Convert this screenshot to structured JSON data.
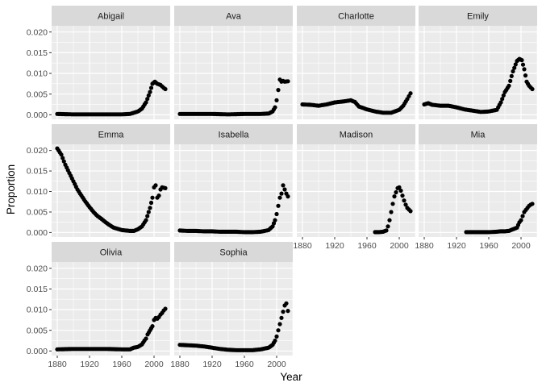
{
  "chart_data": {
    "type": "scatter",
    "facet": "wrap",
    "xlabel": "Year",
    "ylabel": "Proportion",
    "xlim": [
      1873,
      2020
    ],
    "ylim": [
      -0.0011,
      0.0215
    ],
    "xticks": [
      1880,
      1920,
      1960,
      2000
    ],
    "xtick_labels": [
      "1880",
      "1920",
      "1960",
      "2000"
    ],
    "yticks": [
      0,
      0.005,
      0.01,
      0.015,
      0.02
    ],
    "ytick_labels": [
      "0.000",
      "0.005",
      "0.010",
      "0.015",
      "0.020"
    ],
    "grid": true,
    "colors": {
      "panel": "#ebebeb",
      "strip": "#d9d9d9",
      "grid": "#ffffff",
      "point": "#000000"
    },
    "series": [
      {
        "name": "Abigail",
        "points": [
          [
            1880,
            0.0002
          ],
          [
            1900,
            0.0001
          ],
          [
            1920,
            0.0001
          ],
          [
            1940,
            0.0001
          ],
          [
            1960,
            0.0001
          ],
          [
            1970,
            0.0002
          ],
          [
            1980,
            0.0008
          ],
          [
            1985,
            0.0015
          ],
          [
            1990,
            0.003
          ],
          [
            1995,
            0.0055
          ],
          [
            1998,
            0.0075
          ],
          [
            2001,
            0.008
          ],
          [
            2004,
            0.0075
          ],
          [
            2008,
            0.0072
          ],
          [
            2012,
            0.0065
          ],
          [
            2014,
            0.0062
          ]
        ]
      },
      {
        "name": "Ava",
        "points": [
          [
            1880,
            0.0002
          ],
          [
            1900,
            0.0002
          ],
          [
            1920,
            0.0002
          ],
          [
            1940,
            0.0001
          ],
          [
            1960,
            0.0002
          ],
          [
            1980,
            0.0002
          ],
          [
            1990,
            0.0003
          ],
          [
            1995,
            0.0008
          ],
          [
            1998,
            0.0018
          ],
          [
            2000,
            0.0035
          ],
          [
            2002,
            0.006
          ],
          [
            2004,
            0.0085
          ],
          [
            2006,
            0.008
          ],
          [
            2008,
            0.0082
          ],
          [
            2010,
            0.008
          ],
          [
            2014,
            0.0081
          ]
        ]
      },
      {
        "name": "Charlotte",
        "points": [
          [
            1880,
            0.0025
          ],
          [
            1890,
            0.0024
          ],
          [
            1900,
            0.0022
          ],
          [
            1910,
            0.0025
          ],
          [
            1920,
            0.003
          ],
          [
            1930,
            0.0032
          ],
          [
            1940,
            0.0035
          ],
          [
            1945,
            0.0031
          ],
          [
            1950,
            0.002
          ],
          [
            1960,
            0.0013
          ],
          [
            1970,
            0.0008
          ],
          [
            1980,
            0.0005
          ],
          [
            1990,
            0.0005
          ],
          [
            2000,
            0.0012
          ],
          [
            2005,
            0.0022
          ],
          [
            2010,
            0.0038
          ],
          [
            2014,
            0.0052
          ]
        ]
      },
      {
        "name": "Emily",
        "points": [
          [
            1880,
            0.0025
          ],
          [
            1885,
            0.0028
          ],
          [
            1890,
            0.0024
          ],
          [
            1900,
            0.0022
          ],
          [
            1910,
            0.0022
          ],
          [
            1920,
            0.0018
          ],
          [
            1930,
            0.0013
          ],
          [
            1940,
            0.001
          ],
          [
            1950,
            0.0007
          ],
          [
            1960,
            0.0008
          ],
          [
            1970,
            0.0012
          ],
          [
            1975,
            0.003
          ],
          [
            1980,
            0.0055
          ],
          [
            1985,
            0.007
          ],
          [
            1990,
            0.0105
          ],
          [
            1995,
            0.013
          ],
          [
            1998,
            0.0135
          ],
          [
            2001,
            0.0132
          ],
          [
            2004,
            0.011
          ],
          [
            2007,
            0.008
          ],
          [
            2010,
            0.007
          ],
          [
            2014,
            0.0062
          ]
        ]
      },
      {
        "name": "Emma",
        "points": [
          [
            1880,
            0.0205
          ],
          [
            1885,
            0.019
          ],
          [
            1890,
            0.0165
          ],
          [
            1895,
            0.0145
          ],
          [
            1900,
            0.0125
          ],
          [
            1905,
            0.0105
          ],
          [
            1910,
            0.009
          ],
          [
            1915,
            0.0075
          ],
          [
            1920,
            0.0062
          ],
          [
            1925,
            0.005
          ],
          [
            1930,
            0.004
          ],
          [
            1935,
            0.0033
          ],
          [
            1940,
            0.0025
          ],
          [
            1945,
            0.0018
          ],
          [
            1950,
            0.0012
          ],
          [
            1955,
            0.0009
          ],
          [
            1960,
            0.0006
          ],
          [
            1965,
            0.0005
          ],
          [
            1970,
            0.0004
          ],
          [
            1975,
            0.0004
          ],
          [
            1980,
            0.0008
          ],
          [
            1985,
            0.0015
          ],
          [
            1990,
            0.003
          ],
          [
            1995,
            0.006
          ],
          [
            1998,
            0.0085
          ],
          [
            2000,
            0.011
          ],
          [
            2002,
            0.0115
          ],
          [
            2004,
            0.0085
          ],
          [
            2006,
            0.009
          ],
          [
            2008,
            0.0105
          ],
          [
            2010,
            0.011
          ],
          [
            2014,
            0.0108
          ]
        ]
      },
      {
        "name": "Isabella",
        "points": [
          [
            1880,
            0.0005
          ],
          [
            1890,
            0.0004
          ],
          [
            1900,
            0.0004
          ],
          [
            1910,
            0.0003
          ],
          [
            1920,
            0.0003
          ],
          [
            1930,
            0.0002
          ],
          [
            1940,
            0.0002
          ],
          [
            1950,
            0.0002
          ],
          [
            1960,
            0.0001
          ],
          [
            1970,
            0.0001
          ],
          [
            1980,
            0.0002
          ],
          [
            1990,
            0.0006
          ],
          [
            1995,
            0.0015
          ],
          [
            1998,
            0.003
          ],
          [
            2000,
            0.0045
          ],
          [
            2002,
            0.0065
          ],
          [
            2004,
            0.0085
          ],
          [
            2006,
            0.0095
          ],
          [
            2008,
            0.0115
          ],
          [
            2010,
            0.0105
          ],
          [
            2012,
            0.0095
          ],
          [
            2014,
            0.0088
          ]
        ]
      },
      {
        "name": "Madison",
        "points": [
          [
            1970,
            0.0001
          ],
          [
            1975,
            0.0001
          ],
          [
            1980,
            0.0002
          ],
          [
            1984,
            0.0005
          ],
          [
            1986,
            0.0015
          ],
          [
            1988,
            0.003
          ],
          [
            1990,
            0.005
          ],
          [
            1992,
            0.007
          ],
          [
            1994,
            0.0088
          ],
          [
            1996,
            0.0098
          ],
          [
            1998,
            0.0108
          ],
          [
            2000,
            0.011
          ],
          [
            2002,
            0.0102
          ],
          [
            2004,
            0.009
          ],
          [
            2006,
            0.0078
          ],
          [
            2008,
            0.0068
          ],
          [
            2010,
            0.006
          ],
          [
            2014,
            0.0052
          ]
        ]
      },
      {
        "name": "Mia",
        "points": [
          [
            1932,
            0.0001
          ],
          [
            1950,
            0.0001
          ],
          [
            1960,
            0.0001
          ],
          [
            1970,
            0.0002
          ],
          [
            1975,
            0.0003
          ],
          [
            1980,
            0.0003
          ],
          [
            1985,
            0.0004
          ],
          [
            1990,
            0.0008
          ],
          [
            1995,
            0.0012
          ],
          [
            1998,
            0.0025
          ],
          [
            2000,
            0.003
          ],
          [
            2002,
            0.004
          ],
          [
            2004,
            0.005
          ],
          [
            2006,
            0.0055
          ],
          [
            2008,
            0.006
          ],
          [
            2010,
            0.0065
          ],
          [
            2012,
            0.0068
          ],
          [
            2014,
            0.007
          ]
        ]
      },
      {
        "name": "Olivia",
        "points": [
          [
            1880,
            0.0004
          ],
          [
            1900,
            0.0005
          ],
          [
            1920,
            0.0005
          ],
          [
            1940,
            0.0005
          ],
          [
            1960,
            0.0004
          ],
          [
            1970,
            0.0004
          ],
          [
            1975,
            0.0008
          ],
          [
            1980,
            0.001
          ],
          [
            1985,
            0.0016
          ],
          [
            1988,
            0.0025
          ],
          [
            1990,
            0.003
          ],
          [
            1992,
            0.004
          ],
          [
            1995,
            0.005
          ],
          [
            1998,
            0.006
          ],
          [
            2000,
            0.0075
          ],
          [
            2002,
            0.008
          ],
          [
            2004,
            0.0078
          ],
          [
            2006,
            0.0082
          ],
          [
            2008,
            0.0088
          ],
          [
            2010,
            0.0092
          ],
          [
            2012,
            0.0098
          ],
          [
            2014,
            0.0102
          ]
        ]
      },
      {
        "name": "Sophia",
        "points": [
          [
            1880,
            0.0015
          ],
          [
            1890,
            0.0014
          ],
          [
            1900,
            0.0013
          ],
          [
            1910,
            0.0011
          ],
          [
            1920,
            0.0008
          ],
          [
            1930,
            0.0005
          ],
          [
            1940,
            0.0003
          ],
          [
            1950,
            0.0002
          ],
          [
            1960,
            0.0002
          ],
          [
            1970,
            0.0002
          ],
          [
            1980,
            0.0004
          ],
          [
            1985,
            0.0006
          ],
          [
            1990,
            0.0008
          ],
          [
            1995,
            0.0015
          ],
          [
            1998,
            0.0025
          ],
          [
            2000,
            0.0035
          ],
          [
            2002,
            0.005
          ],
          [
            2004,
            0.0065
          ],
          [
            2006,
            0.008
          ],
          [
            2008,
            0.0095
          ],
          [
            2010,
            0.011
          ],
          [
            2012,
            0.0115
          ],
          [
            2014,
            0.0097
          ]
        ]
      }
    ]
  }
}
